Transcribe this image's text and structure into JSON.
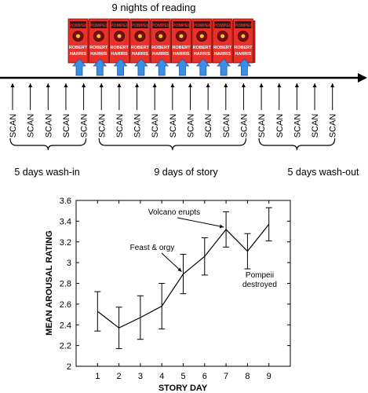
{
  "diagram": {
    "title": "9 nights of reading",
    "scan_label": "SCAN",
    "scan_count": 19,
    "book": {
      "title_text": "POMPEII",
      "author_line1": "ROBERT",
      "author_line2": "HARRIS",
      "copies": 9,
      "cover_color": "#e8312a"
    },
    "phases": [
      {
        "label": "5 days wash-in",
        "days": 5
      },
      {
        "label": "9 days of story",
        "days": 9
      },
      {
        "label": "5 days wash-out",
        "days": 5
      }
    ],
    "colors": {
      "arrow_up": "#3a8ee6",
      "timeline": "#000000"
    }
  },
  "chart_data": {
    "type": "line",
    "xlabel": "STORY DAY",
    "ylabel": "MEAN AROUSAL RATING",
    "x": [
      1,
      2,
      3,
      4,
      5,
      6,
      7,
      8,
      9
    ],
    "y": [
      2.53,
      2.37,
      2.47,
      2.58,
      2.89,
      3.06,
      3.32,
      3.11,
      3.37
    ],
    "error": [
      0.19,
      0.2,
      0.21,
      0.22,
      0.19,
      0.18,
      0.17,
      0.17,
      0.16
    ],
    "xlim": [
      0,
      10
    ],
    "ylim": [
      2,
      3.6
    ],
    "xticks": [
      1,
      2,
      3,
      4,
      5,
      6,
      7,
      8,
      9
    ],
    "yticks": [
      2,
      2.2,
      2.4,
      2.6,
      2.8,
      3,
      3.2,
      3.4,
      3.6
    ],
    "ytick_labels": [
      "2",
      "2.2",
      "2.4",
      "2.6",
      "2.8",
      "3",
      "3.2",
      "3.4",
      "3.6"
    ],
    "grid": false,
    "annotations": [
      {
        "text": "Feast & orgy",
        "x": 5,
        "y": 2.89
      },
      {
        "text": "Volcano erupts",
        "x": 7,
        "y": 3.32
      },
      {
        "text": "Pompeii destroyed",
        "line1": "Pompeii",
        "line2": "destroyed",
        "x": 8,
        "y": 3.11
      }
    ]
  }
}
